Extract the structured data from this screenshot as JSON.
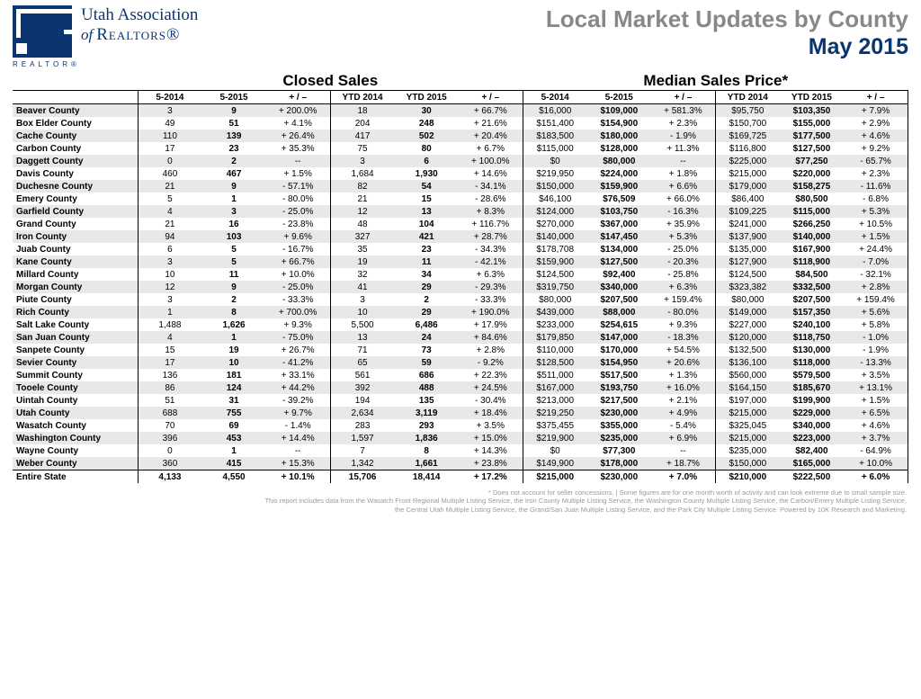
{
  "header": {
    "org_l1": "Utah Association",
    "org_of": "of",
    "org_l2": "Realtors®",
    "logo_caption": "REALTOR®",
    "title": "Local Market Updates by County",
    "period": "May 2015"
  },
  "sections": {
    "closed": "Closed Sales",
    "median": "Median Sales Price*"
  },
  "columns": {
    "label": "",
    "c1": "5-2014",
    "c2": "5-2015",
    "c3": "+ / –",
    "c4": "YTD 2014",
    "c5": "YTD 2015",
    "c6": "+ / –",
    "m1": "5-2014",
    "m2": "5-2015",
    "m3": "+ / –",
    "m4": "YTD 2014",
    "m5": "YTD 2015",
    "m6": "+ / –"
  },
  "rows": [
    {
      "name": "Beaver County",
      "c1": "3",
      "c2": "9",
      "c3": "+ 200.0%",
      "c4": "18",
      "c5": "30",
      "c6": "+ 66.7%",
      "m1": "$16,000",
      "m2": "$109,000",
      "m3": "+ 581.3%",
      "m4": "$95,750",
      "m5": "$103,350",
      "m6": "+ 7.9%"
    },
    {
      "name": "Box Elder County",
      "c1": "49",
      "c2": "51",
      "c3": "+ 4.1%",
      "c4": "204",
      "c5": "248",
      "c6": "+ 21.6%",
      "m1": "$151,400",
      "m2": "$154,900",
      "m3": "+ 2.3%",
      "m4": "$150,700",
      "m5": "$155,000",
      "m6": "+ 2.9%"
    },
    {
      "name": "Cache County",
      "c1": "110",
      "c2": "139",
      "c3": "+ 26.4%",
      "c4": "417",
      "c5": "502",
      "c6": "+ 20.4%",
      "m1": "$183,500",
      "m2": "$180,000",
      "m3": "- 1.9%",
      "m4": "$169,725",
      "m5": "$177,500",
      "m6": "+ 4.6%"
    },
    {
      "name": "Carbon County",
      "c1": "17",
      "c2": "23",
      "c3": "+ 35.3%",
      "c4": "75",
      "c5": "80",
      "c6": "+ 6.7%",
      "m1": "$115,000",
      "m2": "$128,000",
      "m3": "+ 11.3%",
      "m4": "$116,800",
      "m5": "$127,500",
      "m6": "+ 9.2%"
    },
    {
      "name": "Daggett County",
      "c1": "0",
      "c2": "2",
      "c3": "--",
      "c4": "3",
      "c5": "6",
      "c6": "+ 100.0%",
      "m1": "$0",
      "m2": "$80,000",
      "m3": "--",
      "m4": "$225,000",
      "m5": "$77,250",
      "m6": "- 65.7%"
    },
    {
      "name": "Davis County",
      "c1": "460",
      "c2": "467",
      "c3": "+ 1.5%",
      "c4": "1,684",
      "c5": "1,930",
      "c6": "+ 14.6%",
      "m1": "$219,950",
      "m2": "$224,000",
      "m3": "+ 1.8%",
      "m4": "$215,000",
      "m5": "$220,000",
      "m6": "+ 2.3%"
    },
    {
      "name": "Duchesne County",
      "c1": "21",
      "c2": "9",
      "c3": "- 57.1%",
      "c4": "82",
      "c5": "54",
      "c6": "- 34.1%",
      "m1": "$150,000",
      "m2": "$159,900",
      "m3": "+ 6.6%",
      "m4": "$179,000",
      "m5": "$158,275",
      "m6": "- 11.6%"
    },
    {
      "name": "Emery County",
      "c1": "5",
      "c2": "1",
      "c3": "- 80.0%",
      "c4": "21",
      "c5": "15",
      "c6": "- 28.6%",
      "m1": "$46,100",
      "m2": "$76,509",
      "m3": "+ 66.0%",
      "m4": "$86,400",
      "m5": "$80,500",
      "m6": "- 6.8%"
    },
    {
      "name": "Garfield County",
      "c1": "4",
      "c2": "3",
      "c3": "- 25.0%",
      "c4": "12",
      "c5": "13",
      "c6": "+ 8.3%",
      "m1": "$124,000",
      "m2": "$103,750",
      "m3": "- 16.3%",
      "m4": "$109,225",
      "m5": "$115,000",
      "m6": "+ 5.3%"
    },
    {
      "name": "Grand County",
      "c1": "21",
      "c2": "16",
      "c3": "- 23.8%",
      "c4": "48",
      "c5": "104",
      "c6": "+ 116.7%",
      "m1": "$270,000",
      "m2": "$367,000",
      "m3": "+ 35.9%",
      "m4": "$241,000",
      "m5": "$266,250",
      "m6": "+ 10.5%"
    },
    {
      "name": "Iron County",
      "c1": "94",
      "c2": "103",
      "c3": "+ 9.6%",
      "c4": "327",
      "c5": "421",
      "c6": "+ 28.7%",
      "m1": "$140,000",
      "m2": "$147,450",
      "m3": "+ 5.3%",
      "m4": "$137,900",
      "m5": "$140,000",
      "m6": "+ 1.5%"
    },
    {
      "name": "Juab County",
      "c1": "6",
      "c2": "5",
      "c3": "- 16.7%",
      "c4": "35",
      "c5": "23",
      "c6": "- 34.3%",
      "m1": "$178,708",
      "m2": "$134,000",
      "m3": "- 25.0%",
      "m4": "$135,000",
      "m5": "$167,900",
      "m6": "+ 24.4%"
    },
    {
      "name": "Kane County",
      "c1": "3",
      "c2": "5",
      "c3": "+ 66.7%",
      "c4": "19",
      "c5": "11",
      "c6": "- 42.1%",
      "m1": "$159,900",
      "m2": "$127,500",
      "m3": "- 20.3%",
      "m4": "$127,900",
      "m5": "$118,900",
      "m6": "- 7.0%"
    },
    {
      "name": "Millard County",
      "c1": "10",
      "c2": "11",
      "c3": "+ 10.0%",
      "c4": "32",
      "c5": "34",
      "c6": "+ 6.3%",
      "m1": "$124,500",
      "m2": "$92,400",
      "m3": "- 25.8%",
      "m4": "$124,500",
      "m5": "$84,500",
      "m6": "- 32.1%"
    },
    {
      "name": "Morgan County",
      "c1": "12",
      "c2": "9",
      "c3": "- 25.0%",
      "c4": "41",
      "c5": "29",
      "c6": "- 29.3%",
      "m1": "$319,750",
      "m2": "$340,000",
      "m3": "+ 6.3%",
      "m4": "$323,382",
      "m5": "$332,500",
      "m6": "+ 2.8%"
    },
    {
      "name": "Piute County",
      "c1": "3",
      "c2": "2",
      "c3": "- 33.3%",
      "c4": "3",
      "c5": "2",
      "c6": "- 33.3%",
      "m1": "$80,000",
      "m2": "$207,500",
      "m3": "+ 159.4%",
      "m4": "$80,000",
      "m5": "$207,500",
      "m6": "+ 159.4%"
    },
    {
      "name": "Rich County",
      "c1": "1",
      "c2": "8",
      "c3": "+ 700.0%",
      "c4": "10",
      "c5": "29",
      "c6": "+ 190.0%",
      "m1": "$439,000",
      "m2": "$88,000",
      "m3": "- 80.0%",
      "m4": "$149,000",
      "m5": "$157,350",
      "m6": "+ 5.6%"
    },
    {
      "name": "Salt Lake County",
      "c1": "1,488",
      "c2": "1,626",
      "c3": "+ 9.3%",
      "c4": "5,500",
      "c5": "6,486",
      "c6": "+ 17.9%",
      "m1": "$233,000",
      "m2": "$254,615",
      "m3": "+ 9.3%",
      "m4": "$227,000",
      "m5": "$240,100",
      "m6": "+ 5.8%"
    },
    {
      "name": "San Juan County",
      "c1": "4",
      "c2": "1",
      "c3": "- 75.0%",
      "c4": "13",
      "c5": "24",
      "c6": "+ 84.6%",
      "m1": "$179,850",
      "m2": "$147,000",
      "m3": "- 18.3%",
      "m4": "$120,000",
      "m5": "$118,750",
      "m6": "- 1.0%"
    },
    {
      "name": "Sanpete County",
      "c1": "15",
      "c2": "19",
      "c3": "+ 26.7%",
      "c4": "71",
      "c5": "73",
      "c6": "+ 2.8%",
      "m1": "$110,000",
      "m2": "$170,000",
      "m3": "+ 54.5%",
      "m4": "$132,500",
      "m5": "$130,000",
      "m6": "- 1.9%"
    },
    {
      "name": "Sevier County",
      "c1": "17",
      "c2": "10",
      "c3": "- 41.2%",
      "c4": "65",
      "c5": "59",
      "c6": "- 9.2%",
      "m1": "$128,500",
      "m2": "$154,950",
      "m3": "+ 20.6%",
      "m4": "$136,100",
      "m5": "$118,000",
      "m6": "- 13.3%"
    },
    {
      "name": "Summit County",
      "c1": "136",
      "c2": "181",
      "c3": "+ 33.1%",
      "c4": "561",
      "c5": "686",
      "c6": "+ 22.3%",
      "m1": "$511,000",
      "m2": "$517,500",
      "m3": "+ 1.3%",
      "m4": "$560,000",
      "m5": "$579,500",
      "m6": "+ 3.5%"
    },
    {
      "name": "Tooele County",
      "c1": "86",
      "c2": "124",
      "c3": "+ 44.2%",
      "c4": "392",
      "c5": "488",
      "c6": "+ 24.5%",
      "m1": "$167,000",
      "m2": "$193,750",
      "m3": "+ 16.0%",
      "m4": "$164,150",
      "m5": "$185,670",
      "m6": "+ 13.1%"
    },
    {
      "name": "Uintah County",
      "c1": "51",
      "c2": "31",
      "c3": "- 39.2%",
      "c4": "194",
      "c5": "135",
      "c6": "- 30.4%",
      "m1": "$213,000",
      "m2": "$217,500",
      "m3": "+ 2.1%",
      "m4": "$197,000",
      "m5": "$199,900",
      "m6": "+ 1.5%"
    },
    {
      "name": "Utah County",
      "c1": "688",
      "c2": "755",
      "c3": "+ 9.7%",
      "c4": "2,634",
      "c5": "3,119",
      "c6": "+ 18.4%",
      "m1": "$219,250",
      "m2": "$230,000",
      "m3": "+ 4.9%",
      "m4": "$215,000",
      "m5": "$229,000",
      "m6": "+ 6.5%"
    },
    {
      "name": "Wasatch County",
      "c1": "70",
      "c2": "69",
      "c3": "- 1.4%",
      "c4": "283",
      "c5": "293",
      "c6": "+ 3.5%",
      "m1": "$375,455",
      "m2": "$355,000",
      "m3": "- 5.4%",
      "m4": "$325,045",
      "m5": "$340,000",
      "m6": "+ 4.6%"
    },
    {
      "name": "Washington County",
      "c1": "396",
      "c2": "453",
      "c3": "+ 14.4%",
      "c4": "1,597",
      "c5": "1,836",
      "c6": "+ 15.0%",
      "m1": "$219,900",
      "m2": "$235,000",
      "m3": "+ 6.9%",
      "m4": "$215,000",
      "m5": "$223,000",
      "m6": "+ 3.7%"
    },
    {
      "name": "Wayne County",
      "c1": "0",
      "c2": "1",
      "c3": "--",
      "c4": "7",
      "c5": "8",
      "c6": "+ 14.3%",
      "m1": "$0",
      "m2": "$77,300",
      "m3": "--",
      "m4": "$235,000",
      "m5": "$82,400",
      "m6": "- 64.9%"
    },
    {
      "name": "Weber County",
      "c1": "360",
      "c2": "415",
      "c3": "+ 15.3%",
      "c4": "1,342",
      "c5": "1,661",
      "c6": "+ 23.8%",
      "m1": "$149,900",
      "m2": "$178,000",
      "m3": "+ 18.7%",
      "m4": "$150,000",
      "m5": "$165,000",
      "m6": "+ 10.0%"
    }
  ],
  "total": {
    "name": "Entire State",
    "c1": "4,133",
    "c2": "4,550",
    "c3": "+ 10.1%",
    "c4": "15,706",
    "c5": "18,414",
    "c6": "+ 17.2%",
    "m1": "$215,000",
    "m2": "$230,000",
    "m3": "+ 7.0%",
    "m4": "$210,000",
    "m5": "$222,500",
    "m6": "+ 6.0%"
  },
  "footnote": {
    "l1": "* Does not account for seller concessions.  |  Some figures are for one month worth of activity and can look extreme due to small sample size.",
    "l2": "This report includes data from the Wasatch Front Regional Multiple Listing Service, the Iron County Multiple Listing Service, the Washington County Multiple Listing Service, the Carbon/Emery Multiple Listing Service,",
    "l3": "the Central Utah Multiple Listing Service, the Grand/San Juan Multiple Listing Service, and the Park City Multiple Listing Service. Powered by 10K Research and Marketing."
  },
  "style": {
    "brand_color": "#0a3570",
    "muted_color": "#888888",
    "alt_row_bg": "#e9e8e6",
    "footnote_color": "#9a9a9a"
  }
}
